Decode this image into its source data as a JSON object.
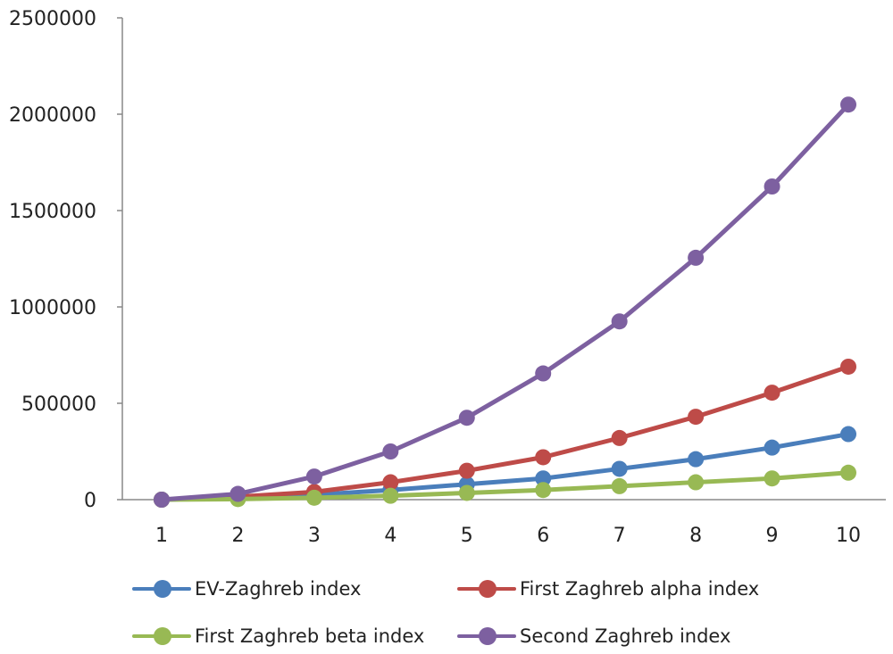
{
  "chart_data": {
    "type": "line",
    "x": [
      1,
      2,
      3,
      4,
      5,
      6,
      7,
      8,
      9,
      10
    ],
    "ylim": [
      0,
      2500000
    ],
    "yticks": [
      0,
      500000,
      1000000,
      1500000,
      2000000,
      2500000
    ],
    "ytick_labels": [
      "0",
      "500000",
      "1000000",
      "1500000",
      "2000000",
      "2500000"
    ],
    "xtick_labels": [
      "1",
      "2",
      "3",
      "4",
      "5",
      "6",
      "7",
      "8",
      "9",
      "10"
    ],
    "grid": false,
    "legend_position": "bottom",
    "series": [
      {
        "name": "EV-Zaghreb index",
        "color": "#4a7ebb",
        "values": [
          0,
          10000,
          25000,
          50000,
          80000,
          110000,
          160000,
          210000,
          270000,
          340000
        ]
      },
      {
        "name": "First Zaghreb alpha index",
        "color": "#be4b48",
        "values": [
          0,
          15000,
          40000,
          90000,
          150000,
          220000,
          320000,
          430000,
          555000,
          690000
        ]
      },
      {
        "name": "First Zaghreb beta index",
        "color": "#98b954",
        "values": [
          0,
          3000,
          10000,
          20000,
          35000,
          50000,
          70000,
          90000,
          110000,
          140000
        ]
      },
      {
        "name": "Second Zaghreb index",
        "color": "#7d60a0",
        "values": [
          0,
          30000,
          120000,
          250000,
          425000,
          655000,
          925000,
          1255000,
          1625000,
          2050000
        ]
      }
    ]
  }
}
